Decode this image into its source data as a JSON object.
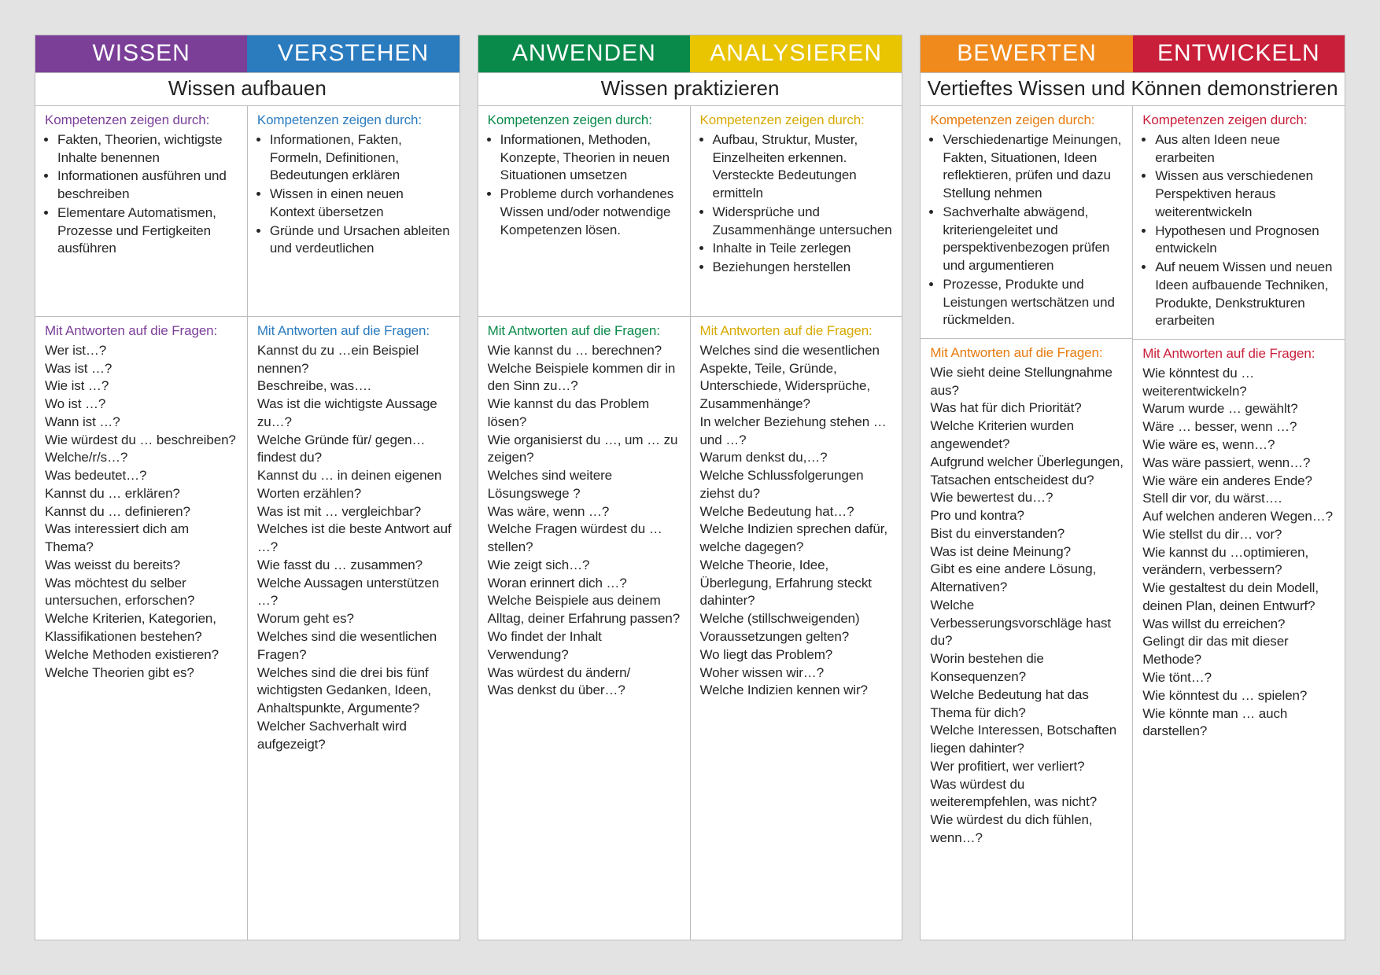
{
  "colors": {
    "page_bg": "#e3e3e3",
    "panel_bg": "#ffffff",
    "border": "#bdbdbd"
  },
  "fontsizes": {
    "header": 30,
    "subtitle": 26,
    "body": 17
  },
  "groups": [
    {
      "subtitle": "Wissen aufbauen",
      "columns": [
        {
          "header": "WISSEN",
          "header_bg": "#7b3f98",
          "accent": "#7b3f98",
          "comp_label": "Kompetenzen zeigen durch:",
          "comp_items": [
            "Fakten, Theorien, wichtigste Inhalte benennen",
            "Informationen ausführen und beschreiben",
            "Elementare Automatismen, Prozesse und Fertigkeiten ausführen"
          ],
          "q_label": "Mit Antworten auf die Fragen:",
          "q_lines": [
            "Wer ist…?",
            "Was ist …?",
            "Wie ist …?",
            "Wo ist …?",
            "Wann ist …?",
            "Wie würdest du … beschreiben?",
            "Welche/r/s…?",
            "Was bedeutet…?",
            "Kannst du … erklären?",
            "Kannst du … definieren?",
            "Was interessiert dich am Thema?",
            "Was weisst du bereits?",
            "Was möchtest du selber untersuchen, erforschen?",
            "Welche Kriterien, Kategorien, Klassifikationen bestehen?",
            "Welche Methoden existieren?",
            "Welche Theorien gibt es?"
          ]
        },
        {
          "header": "VERSTEHEN",
          "header_bg": "#2b7bbf",
          "accent": "#2b7bbf",
          "comp_label": "Kompetenzen zeigen durch:",
          "comp_items": [
            "Informationen, Fakten, Formeln, Definitionen, Bedeutungen erklären",
            "Wissen in einen neuen Kontext übersetzen",
            "Gründe und Ursachen ableiten und verdeutlichen"
          ],
          "q_label": "Mit Antworten auf die Fragen:",
          "q_lines": [
            "Kannst du zu …ein Beispiel nennen?",
            "Beschreibe, was….",
            "Was ist die wichtigste Aussage zu…?",
            "Welche Gründe für/ gegen… findest du?",
            "Kannst du … in deinen eigenen Worten erzählen?",
            "Was ist mit … vergleichbar?",
            "Welches ist die beste Antwort auf …?",
            "Wie fasst du … zusammen?",
            "Welche Aussagen unterstützen …?",
            "Worum geht es?",
            "Welches sind die wesentlichen Fragen?",
            "Welches sind die drei bis fünf wichtigsten Gedanken, Ideen, Anhaltspunkte, Argumente?",
            "Welcher Sachverhalt wird aufgezeigt?"
          ]
        }
      ]
    },
    {
      "subtitle": "Wissen praktizieren",
      "columns": [
        {
          "header": "ANWENDEN",
          "header_bg": "#0a8a4a",
          "accent": "#0a8a4a",
          "comp_label": "Kompetenzen zeigen durch:",
          "comp_items": [
            "Informationen, Methoden, Konzepte, Theorien in neuen Situationen umsetzen",
            "Probleme durch vorhandenes Wissen und/oder notwendige Kompetenzen lösen."
          ],
          "q_label": "Mit Antworten auf die Fragen:",
          "q_lines": [
            "Wie kannst du … berechnen?",
            "Welche Beispiele kommen dir in den Sinn zu…?",
            "Wie kannst du das Problem lösen?",
            "Wie organisierst du …, um … zu zeigen?",
            "Welches sind weitere Lösungswege ?",
            "Was wäre, wenn …?",
            "Welche Fragen würdest du … stellen?",
            "Wie zeigt sich…?",
            "Woran erinnert dich …?",
            "Welche Beispiele aus deinem Alltag, deiner Erfahrung passen?",
            "Wo findet der Inhalt Verwendung?",
            "Was würdest du ändern/",
            "Was denkst du über…?"
          ]
        },
        {
          "header": "ANALYSIEREN",
          "header_bg": "#e9c400",
          "accent": "#d7a900",
          "comp_label": "Kompetenzen zeigen durch:",
          "comp_items": [
            "Aufbau, Struktur, Muster, Einzelheiten erkennen. Versteckte Bedeutungen ermitteln",
            "Widersprüche und Zusammenhänge untersuchen",
            "Inhalte in Teile zerlegen",
            "Beziehungen herstellen"
          ],
          "q_label": "Mit Antworten auf die Fragen:",
          "q_lines": [
            "Welches sind die wesentlichen Aspekte, Teile, Gründe, Unterschiede, Widersprüche, Zusammenhänge?",
            "In welcher Beziehung stehen … und …?",
            "Warum denkst du,…?",
            "Welche Schlussfolgerungen ziehst du?",
            "Welche Bedeutung hat…?",
            "Welche Indizien sprechen dafür, welche dagegen?",
            "Welche Theorie, Idee, Überlegung, Erfahrung steckt dahinter?",
            "Welche (stillschweigenden) Voraussetzungen gelten?",
            "Wo liegt das Problem?",
            "Woher wissen wir…?",
            "Welche Indizien kennen wir?"
          ]
        }
      ]
    },
    {
      "subtitle": "Vertieftes Wissen und Können demonstrieren",
      "columns": [
        {
          "header": "BEWERTEN",
          "header_bg": "#f08a1d",
          "accent": "#e77b10",
          "comp_label": "Kompetenzen zeigen durch:",
          "comp_items": [
            "Verschiedenartige  Meinungen, Fakten, Situationen, Ideen reflektieren, prüfen und dazu Stellung nehmen",
            "Sachverhalte abwägend, kriteriengeleitet und perspektivenbezogen prüfen und argumentieren",
            "Prozesse, Produkte und Leistungen wertschätzen und rückmelden."
          ],
          "q_label": "Mit Antworten auf die Fragen:",
          "q_lines": [
            "Wie sieht deine Stellungnahme aus?",
            "Was hat für dich Priorität?",
            "Welche Kriterien wurden angewendet?",
            "Aufgrund welcher Überlegungen, Tatsachen entscheidest du?",
            "Wie bewertest du…?",
            "Pro und kontra?",
            "Bist du einverstanden?",
            "Was ist deine Meinung?",
            "Gibt es eine andere Lösung, Alternativen?",
            "Welche Verbesserungsvorschläge hast du?",
            "Worin bestehen die Konsequenzen?",
            "Welche Bedeutung hat das Thema für dich?",
            "Welche Interessen, Botschaften liegen dahinter?",
            "Wer profitiert, wer verliert?",
            "Was würdest du weiterempfehlen, was nicht?",
            "Wie würdest du dich fühlen, wenn…?"
          ]
        },
        {
          "header": "ENTWICKELN",
          "header_bg": "#c91f3a",
          "accent": "#c91f3a",
          "comp_label": "Kompetenzen zeigen durch:",
          "comp_items": [
            "Aus alten Ideen neue erarbeiten",
            "Wissen aus verschiedenen Perspektiven heraus weiterentwickeln",
            "Hypothesen und Prognosen entwickeln",
            "Auf neuem Wissen und neuen Ideen aufbauende Techniken, Produkte, Denkstrukturen erarbeiten"
          ],
          "q_label": "Mit Antworten auf die Fragen:",
          "q_lines": [
            "Wie könntest du … weiterentwickeln?",
            "Warum wurde … gewählt?",
            "Wäre … besser, wenn …?",
            "Wie wäre es, wenn…?",
            "Was wäre passiert, wenn…?",
            "Wie wäre ein anderes Ende?",
            "Stell dir vor, du wärst….",
            "Auf welchen anderen Wegen…?",
            "Wie stellst du dir… vor?",
            "Wie kannst du …optimieren, verändern, verbessern?",
            "Wie gestaltest du dein Modell, deinen Plan, deinen Entwurf?",
            "Was willst du erreichen?",
            "Gelingt dir das mit dieser Methode?",
            "Wie tönt…?",
            "Wie könntest du … spielen?",
            "Wie könnte man … auch darstellen?"
          ]
        }
      ]
    }
  ]
}
